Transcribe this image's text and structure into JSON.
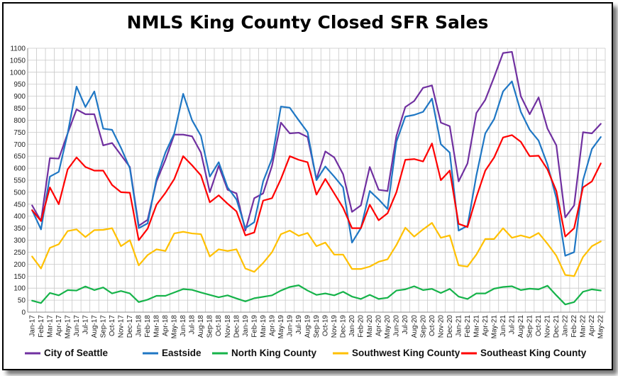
{
  "chart_data": {
    "type": "line",
    "title": "NMLS King County Closed SFR Sales",
    "xlabel": "",
    "ylabel": "",
    "ylim": [
      0,
      1100
    ],
    "ytick_step": 50,
    "grid": true,
    "legend_position": "bottom",
    "categories": [
      "Jan-17",
      "Feb-17",
      "Mar-17",
      "Apr-17",
      "May-17",
      "Jun-17",
      "Jul-17",
      "Aug-17",
      "Sep-17",
      "Oct-17",
      "Nov-17",
      "Dec-17",
      "Jan-18",
      "Feb-18",
      "Mar-18",
      "Apr-18",
      "May-18",
      "Jun-18",
      "Jul-18",
      "Aug-18",
      "Sep-18",
      "Oct-18",
      "Nov-18",
      "Dec-18",
      "Jan-19",
      "Feb-19",
      "Mar-19",
      "Apr-19",
      "May-19",
      "Jun-19",
      "Jul-19",
      "Aug-19",
      "Sep-19",
      "Oct-19",
      "Nov-19",
      "Dec-19",
      "Jan-20",
      "Feb-20",
      "Mar-20",
      "Apr-20",
      "May-20",
      "Jun-20",
      "Jul-20",
      "Aug-20",
      "Sep-20",
      "Oct-20",
      "Nov-20",
      "Dec-20",
      "Jan-21",
      "Feb-21",
      "Mar-21",
      "Apr-21",
      "May-21",
      "Jun-21",
      "Jul-21",
      "Aug-21",
      "Sep-21",
      "Oct-21",
      "Nov-21",
      "Dec-21",
      "Jan-22",
      "Feb-22",
      "Mar-22",
      "Apr-22",
      "May-22"
    ],
    "series": [
      {
        "name": "City of Seattle",
        "color": "#7030a0",
        "values": [
          445,
          380,
          642,
          640,
          745,
          845,
          825,
          825,
          695,
          705,
          655,
          605,
          360,
          385,
          545,
          635,
          740,
          740,
          733,
          665,
          500,
          610,
          510,
          495,
          340,
          475,
          495,
          610,
          790,
          745,
          748,
          730,
          555,
          670,
          645,
          575,
          418,
          445,
          605,
          510,
          505,
          735,
          855,
          880,
          935,
          945,
          790,
          775,
          545,
          620,
          830,
          885,
          980,
          1080,
          1085,
          900,
          825,
          895,
          765,
          695,
          395,
          445,
          750,
          745,
          785
        ]
      },
      {
        "name": "Eastside",
        "color": "#1f77c4",
        "values": [
          425,
          345,
          565,
          585,
          745,
          940,
          855,
          920,
          765,
          760,
          685,
          600,
          350,
          370,
          555,
          665,
          745,
          910,
          800,
          735,
          565,
          625,
          520,
          470,
          350,
          375,
          545,
          640,
          857,
          852,
          800,
          750,
          550,
          607,
          565,
          520,
          290,
          350,
          505,
          470,
          430,
          710,
          815,
          822,
          835,
          890,
          700,
          665,
          340,
          360,
          570,
          745,
          805,
          920,
          962,
          835,
          760,
          715,
          615,
          475,
          235,
          250,
          550,
          680,
          730
        ]
      },
      {
        "name": "North King County",
        "color": "#16b34a",
        "values": [
          48,
          38,
          80,
          70,
          92,
          90,
          107,
          92,
          103,
          78,
          88,
          78,
          42,
          52,
          68,
          68,
          82,
          96,
          93,
          82,
          72,
          62,
          70,
          57,
          45,
          58,
          64,
          70,
          90,
          105,
          112,
          90,
          72,
          78,
          70,
          85,
          65,
          55,
          72,
          55,
          60,
          90,
          95,
          108,
          92,
          97,
          80,
          97,
          65,
          55,
          78,
          78,
          98,
          105,
          108,
          92,
          98,
          95,
          110,
          70,
          32,
          42,
          85,
          95,
          90
        ]
      },
      {
        "name": "Southwest King County",
        "color": "#ffc000",
        "values": [
          232,
          182,
          268,
          283,
          338,
          345,
          313,
          342,
          343,
          350,
          275,
          300,
          195,
          238,
          262,
          255,
          328,
          335,
          328,
          325,
          232,
          262,
          255,
          262,
          182,
          168,
          205,
          250,
          325,
          340,
          318,
          330,
          275,
          290,
          240,
          240,
          180,
          180,
          190,
          210,
          220,
          280,
          352,
          315,
          345,
          372,
          310,
          320,
          195,
          190,
          240,
          305,
          305,
          350,
          310,
          320,
          310,
          330,
          285,
          235,
          155,
          150,
          230,
          275,
          295
        ]
      },
      {
        "name": "Southeast King County",
        "color": "#ff0000",
        "values": [
          425,
          380,
          520,
          450,
          595,
          645,
          605,
          590,
          590,
          530,
          500,
          498,
          300,
          348,
          448,
          497,
          555,
          650,
          612,
          570,
          458,
          487,
          452,
          420,
          320,
          332,
          465,
          475,
          555,
          650,
          635,
          625,
          490,
          555,
          495,
          435,
          350,
          350,
          448,
          383,
          412,
          500,
          635,
          638,
          628,
          703,
          550,
          590,
          368,
          355,
          480,
          590,
          645,
          728,
          738,
          710,
          650,
          652,
          595,
          505,
          315,
          350,
          520,
          545,
          620
        ]
      }
    ]
  }
}
